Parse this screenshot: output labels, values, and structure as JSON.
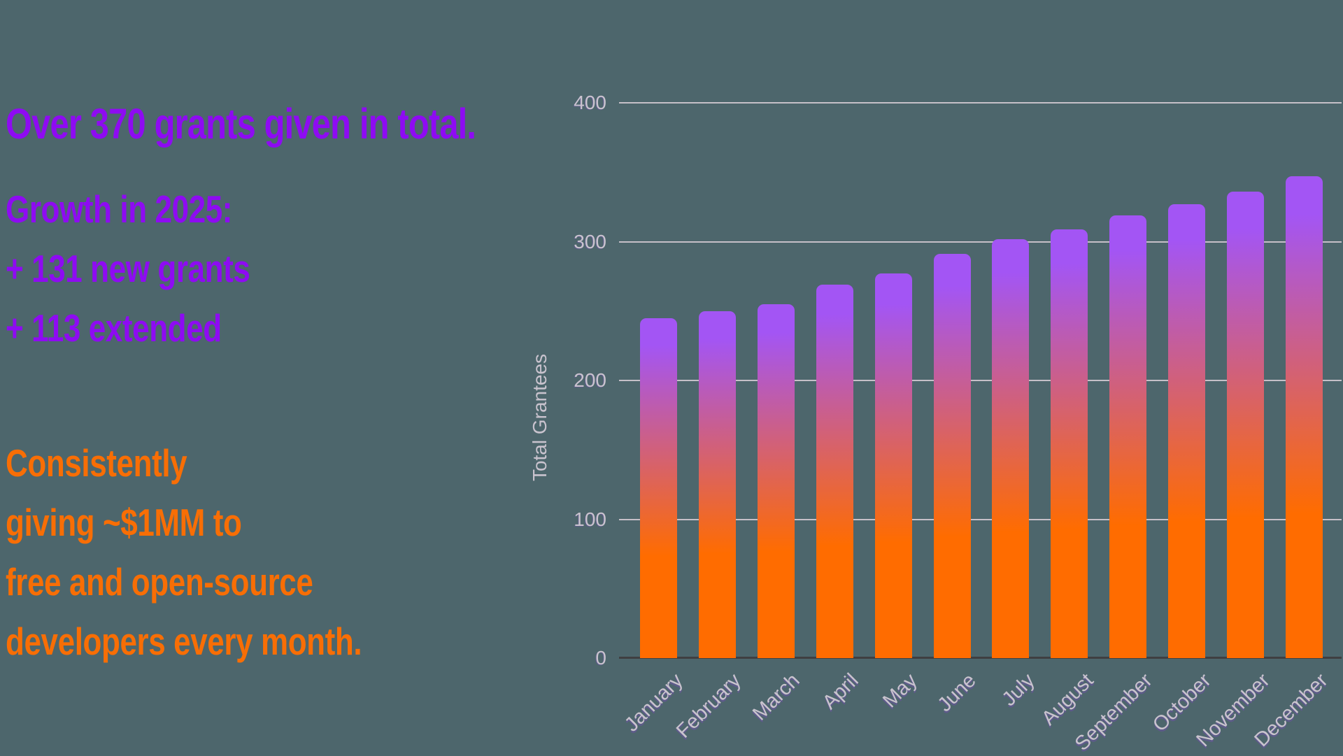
{
  "headline": "Over 370 grants given in total.",
  "growth": {
    "title": "Growth in 2025:",
    "lines": [
      "+ 131 new grants",
      "+ 113 extended"
    ]
  },
  "message": {
    "lines": [
      "Consistently",
      "giving ~$1MM to",
      "free and open-source",
      "developers every month."
    ]
  },
  "colors": {
    "background": "#4D666C",
    "purple": "#8E0BF2",
    "orange": "#F86E05",
    "axis_text": "#C9C3CE",
    "gridline": "#C6C0C8",
    "axis_line": "#3F3F41",
    "bar_top": "#A355F4",
    "bar_bottom": "#FF6C00"
  },
  "chart_data": {
    "type": "bar",
    "title": "",
    "xlabel": "",
    "ylabel": "Total Grantees",
    "categories": [
      "January",
      "February",
      "March",
      "April",
      "May",
      "June",
      "July",
      "August",
      "September",
      "October",
      "November",
      "December"
    ],
    "values": [
      245,
      250,
      255,
      269,
      277,
      291,
      302,
      309,
      319,
      327,
      336,
      347
    ],
    "yticks": [
      0,
      100,
      200,
      300,
      400
    ],
    "ylim": [
      0,
      400
    ],
    "grid": true,
    "legend": false,
    "bar_gradient": {
      "top": "#A355F4",
      "bottom": "#FF6C00"
    }
  }
}
